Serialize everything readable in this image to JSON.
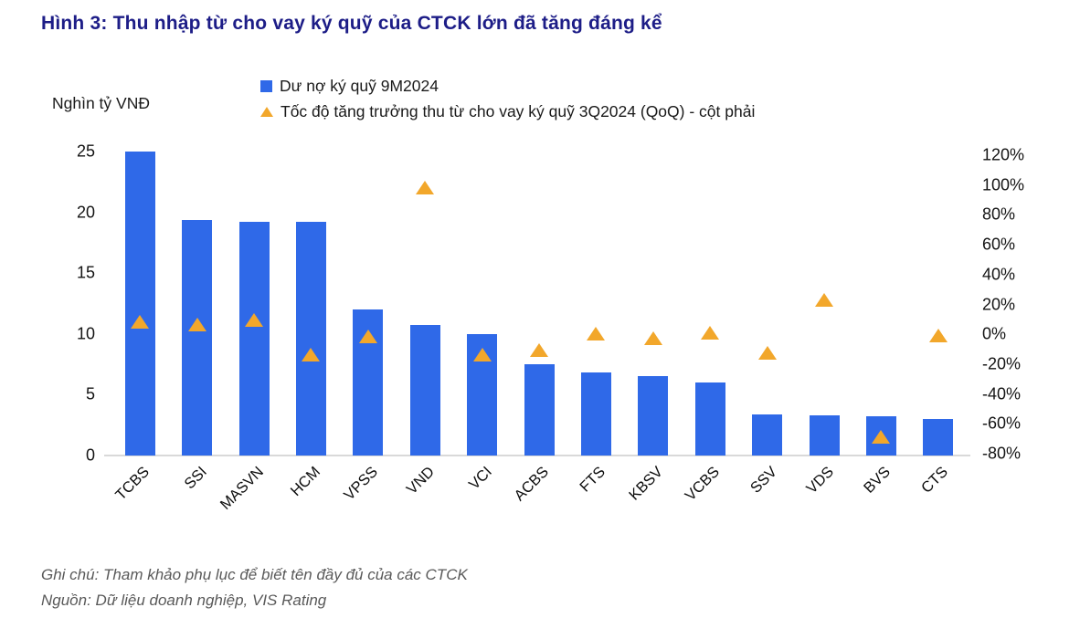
{
  "title": "Hình 3: Thu nhập từ cho vay ký quỹ của CTCK lớn đã tăng đáng kể",
  "notes": [
    "Ghi chú: Tham khảo phụ lục để biết tên đầy đủ của các CTCK",
    "Nguồn: Dữ liệu doanh nghiệp, VIS Rating"
  ],
  "colors": {
    "bar": "#2f69e8",
    "marker": "#f2a72b",
    "title": "#1d1d87",
    "notes": "#595959",
    "axis_line": "#d9d9d9",
    "text": "#111111"
  },
  "chart_data": {
    "type": "bar",
    "subtype": "combo-bar-with-triangle-scatter",
    "title": "Hình 3: Thu nhập từ cho vay ký quỹ của CTCK lớn đã tăng đáng kể",
    "categories": [
      "TCBS",
      "SSI",
      "MASVN",
      "HCM",
      "VPSS",
      "VND",
      "VCI",
      "ACBS",
      "FTS",
      "KBSV",
      "VCBS",
      "SSV",
      "VDS",
      "BVS",
      "CTS"
    ],
    "series": [
      {
        "name": "Dư nợ ký quỹ 9M2024",
        "type": "bar",
        "axis": "left",
        "values": [
          25.0,
          19.4,
          19.2,
          19.2,
          12.0,
          10.7,
          10.0,
          7.5,
          6.8,
          6.5,
          6.0,
          3.4,
          3.3,
          3.2,
          3.0
        ]
      },
      {
        "name": "Tốc độ tăng trưởng thu từ cho vay ký quỹ 3Q2024 (QoQ) - cột phải",
        "type": "scatter",
        "marker": "triangle-up",
        "axis": "right",
        "values": [
          8,
          6,
          9,
          -14,
          -2,
          98,
          -14,
          -11,
          0,
          -3,
          1,
          -13,
          23,
          -69,
          -1
        ]
      }
    ],
    "left_axis": {
      "title": "Nghìn tỷ VNĐ",
      "min": 0,
      "max": 25,
      "ticks": [
        25,
        20,
        15,
        10,
        5,
        0
      ]
    },
    "right_axis": {
      "min": -80,
      "max": 120,
      "ticks": [
        120,
        100,
        80,
        60,
        40,
        20,
        0,
        -20,
        -40,
        -60,
        -80
      ],
      "format": "percent"
    },
    "legend_position": "top",
    "grid": false
  }
}
